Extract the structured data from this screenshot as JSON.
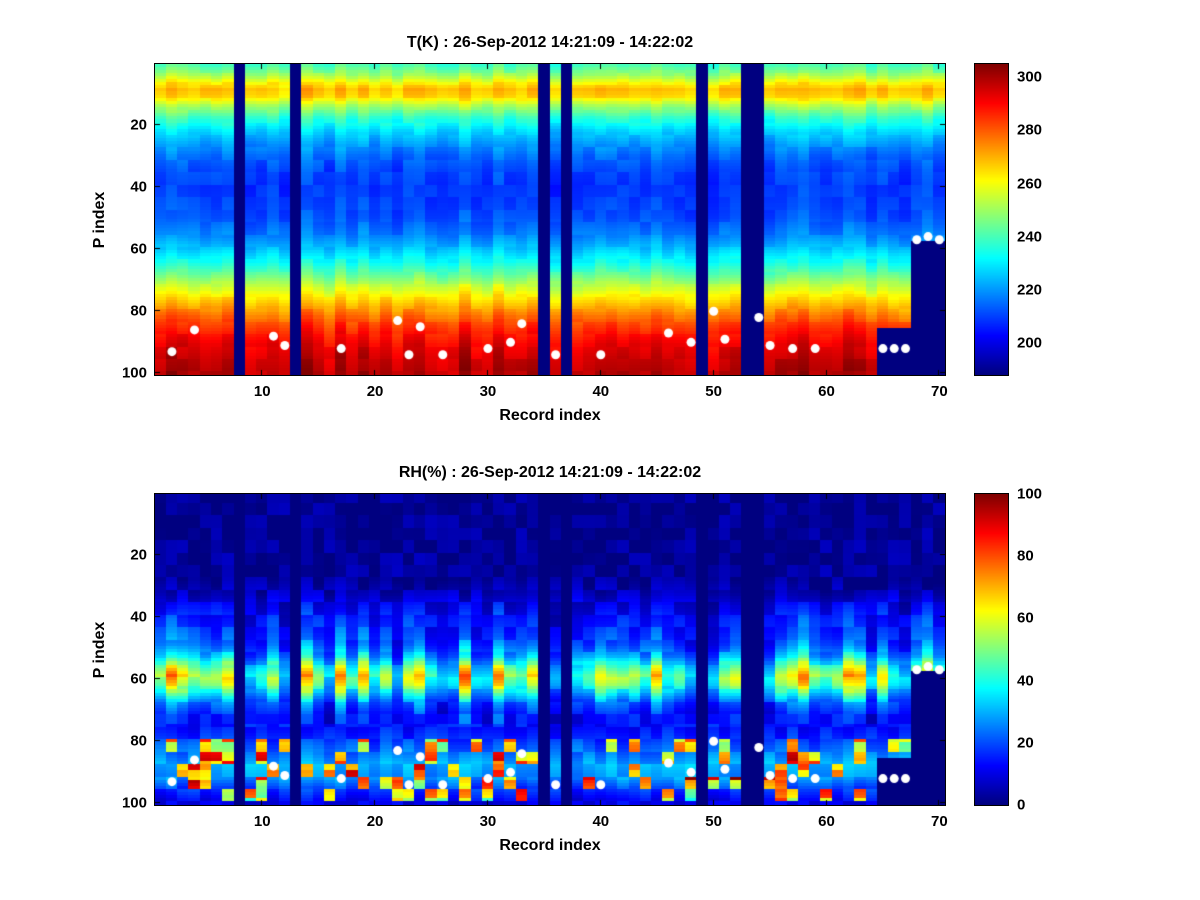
{
  "figure": {
    "background": "#ffffff",
    "text_color": "#000000"
  },
  "surface_markers": {
    "color": "#ffffff",
    "points": [
      [
        2,
        93
      ],
      [
        4,
        86
      ],
      [
        11,
        88
      ],
      [
        12,
        91
      ],
      [
        17,
        92
      ],
      [
        22,
        83
      ],
      [
        23,
        94
      ],
      [
        24,
        85
      ],
      [
        26,
        94
      ],
      [
        30,
        92
      ],
      [
        32,
        90
      ],
      [
        33,
        84
      ],
      [
        36,
        94
      ],
      [
        40,
        94
      ],
      [
        46,
        87
      ],
      [
        48,
        90
      ],
      [
        50,
        80
      ],
      [
        51,
        89
      ],
      [
        54,
        82
      ],
      [
        55,
        91
      ],
      [
        57,
        92
      ],
      [
        59,
        92
      ],
      [
        65,
        92
      ],
      [
        66,
        92
      ],
      [
        67,
        92
      ],
      [
        68,
        57
      ],
      [
        69,
        56
      ],
      [
        70,
        57
      ]
    ]
  },
  "chart_data": [
    {
      "type": "heatmap",
      "title": "T(K) : 26-Sep-2012 14:21:09 - 14:22:02",
      "xlabel": "Record index",
      "ylabel": "P index",
      "colormap": "jet",
      "n_records": 70,
      "n_levels": 100,
      "x_ticks": [
        10,
        20,
        30,
        40,
        50,
        60,
        70
      ],
      "y_ticks": [
        20,
        40,
        60,
        80,
        100
      ],
      "y_axis_reversed": true,
      "clim": [
        188,
        305
      ],
      "colorbar_ticks": [
        200,
        220,
        240,
        260,
        280,
        300
      ],
      "vertical_profile": {
        "p": [
          1,
          3,
          5,
          7,
          9,
          11,
          14,
          18,
          22,
          26,
          30,
          35,
          40,
          45,
          50,
          55,
          60,
          64,
          68,
          72,
          76,
          80,
          84,
          88,
          92,
          96,
          100
        ],
        "value": [
          240,
          246,
          254,
          263,
          269,
          266,
          252,
          238,
          228,
          221,
          215,
          211,
          209,
          210,
          212,
          217,
          225,
          233,
          243,
          254,
          265,
          274,
          283,
          289,
          294,
          297,
          299
        ]
      },
      "noise_amplitude": 2.5,
      "record_gain": {
        "range": [
          0.985,
          1.015
        ]
      },
      "missing_records": [
        8,
        13,
        35,
        37,
        49,
        53,
        54
      ],
      "partial_missing": [
        {
          "records": [
            65,
            66,
            67
          ],
          "below_p": 86
        },
        {
          "records": [
            68,
            69,
            70
          ],
          "below_p": 58
        }
      ]
    },
    {
      "type": "heatmap",
      "title": "RH(%) : 26-Sep-2012 14:21:09 - 14:22:02",
      "xlabel": "Record index",
      "ylabel": "P index",
      "colormap": "jet",
      "n_records": 70,
      "n_levels": 100,
      "x_ticks": [
        10,
        20,
        30,
        40,
        50,
        60,
        70
      ],
      "y_ticks": [
        20,
        40,
        60,
        80,
        100
      ],
      "y_axis_reversed": true,
      "clim": [
        0,
        100
      ],
      "colorbar_ticks": [
        0,
        20,
        40,
        60,
        80,
        100
      ],
      "vertical_profile": {
        "p": [
          1,
          28,
          33,
          37,
          41,
          45,
          49,
          53,
          56,
          59,
          62,
          65,
          68,
          72,
          76,
          80,
          84,
          88,
          92,
          96,
          100
        ],
        "value": [
          1,
          2,
          6,
          11,
          15,
          17,
          21,
          30,
          44,
          54,
          48,
          34,
          22,
          15,
          14,
          18,
          24,
          30,
          27,
          17,
          10
        ]
      },
      "noise_amplitude": 5,
      "record_gain": {
        "range": [
          0.5,
          1.5
        ],
        "p_range": [
          36,
          74
        ]
      },
      "spots": {
        "p_range": [
          80,
          99
        ],
        "probability": 0.3,
        "intensity": [
          25,
          70
        ]
      },
      "missing_records": [
        8,
        13,
        35,
        37,
        49,
        53,
        54
      ],
      "partial_missing": [
        {
          "records": [
            65,
            66,
            67
          ],
          "below_p": 86
        },
        {
          "records": [
            68,
            69,
            70
          ],
          "below_p": 58
        }
      ]
    }
  ]
}
